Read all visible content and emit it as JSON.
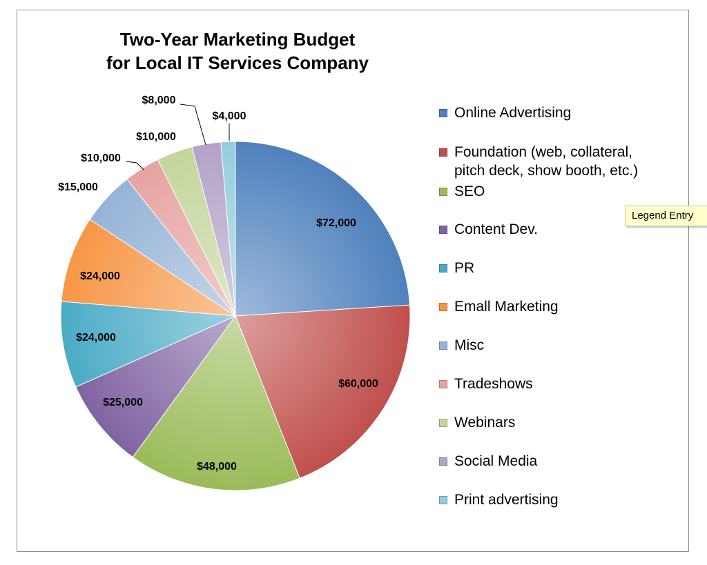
{
  "chart_data": {
    "type": "pie",
    "title": "Two-Year Marketing Budget\nfor Local IT Services Company",
    "title_lines": [
      "Two-Year Marketing Budget",
      "for Local IT Services Company"
    ],
    "legend_position": "right",
    "start_angle": "12 o'clock",
    "direction": "clockwise",
    "slices": [
      {
        "name": "Online Advertising",
        "value": 72000,
        "label": "$72,000",
        "color": "#4f81bd"
      },
      {
        "name": "Foundation (web, collateral,\npitch deck, show booth, etc.)",
        "value": 60000,
        "label": "$60,000",
        "color": "#c0504d"
      },
      {
        "name": "SEO",
        "value": 48000,
        "label": "$48,000",
        "color": "#9bbb59"
      },
      {
        "name": "Content Dev.",
        "value": 25000,
        "label": "$25,000",
        "color": "#8064a2"
      },
      {
        "name": "PR",
        "value": 24000,
        "label": "$24,000",
        "color": "#4bacc6"
      },
      {
        "name": "Emall Marketing",
        "value": 24000,
        "label": "$24,000",
        "color": "#f79646"
      },
      {
        "name": "Misc",
        "value": 15000,
        "label": "$15,000",
        "color": "#95b3d7"
      },
      {
        "name": "Tradeshows",
        "value": 10000,
        "label": "$10,000",
        "color": "#e6a3a1"
      },
      {
        "name": "Webinars",
        "value": 10000,
        "label": "$10,000",
        "color": "#c3d69b"
      },
      {
        "name": "Social Media",
        "value": 8000,
        "label": "$8,000",
        "color": "#b3a2c7"
      },
      {
        "name": "Print advertising",
        "value": 4000,
        "label": "$4,000",
        "color": "#93cddd"
      }
    ]
  },
  "tooltip": {
    "text": "Legend Entry"
  }
}
